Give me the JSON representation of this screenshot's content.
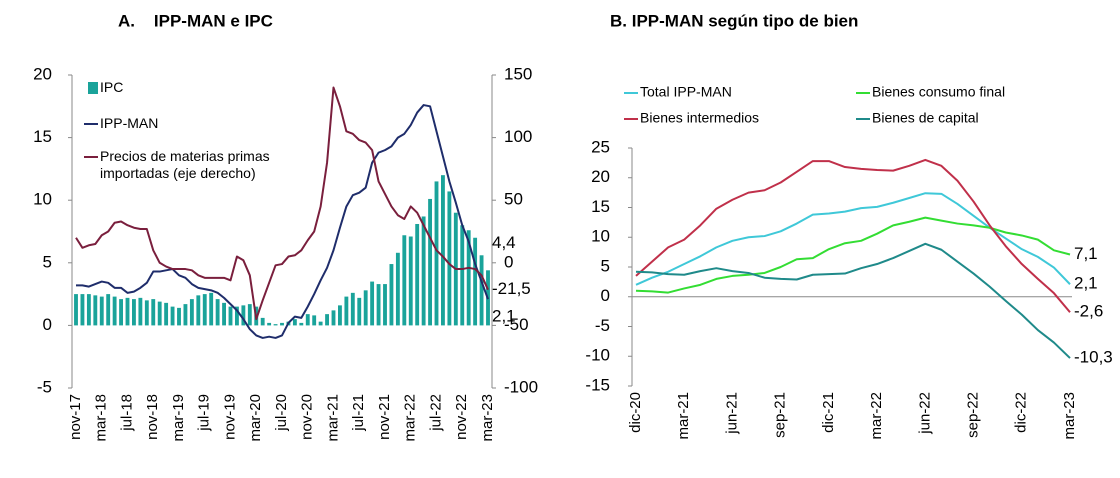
{
  "chart_data": [
    {
      "type": "combo",
      "title": "A.    IPP-MAN e IPC",
      "categories": [
        "nov-17",
        null,
        null,
        null,
        "mar-18",
        null,
        null,
        null,
        "jul-18",
        null,
        null,
        null,
        "nov-18",
        null,
        null,
        null,
        "mar-19",
        null,
        null,
        null,
        "jul-19",
        null,
        null,
        null,
        "nov-19",
        null,
        null,
        null,
        "mar-20",
        null,
        null,
        null,
        "jul-20",
        null,
        null,
        null,
        "nov-20",
        null,
        null,
        null,
        "mar-21",
        null,
        null,
        null,
        "jul-21",
        null,
        null,
        null,
        "nov-21",
        null,
        null,
        null,
        "mar-22",
        null,
        null,
        null,
        "jul-22",
        null,
        null,
        null,
        "nov-22",
        null,
        null,
        null,
        "mar-23"
      ],
      "ylim": [
        -5,
        20
      ],
      "yticks": [
        -5,
        0,
        5,
        10,
        15,
        20
      ],
      "y2lim": [
        -100,
        150
      ],
      "y2ticks": [
        -100,
        -50,
        0,
        50,
        100,
        150
      ],
      "series": [
        {
          "name": "IPC",
          "type": "bar",
          "color": "#1aa39a",
          "values": [
            2.5,
            2.5,
            2.5,
            2.4,
            2.3,
            2.5,
            2.3,
            2.1,
            2.2,
            2.1,
            2.2,
            2.0,
            2.1,
            1.9,
            1.8,
            1.5,
            1.4,
            1.7,
            2.1,
            2.4,
            2.5,
            2.6,
            2.1,
            1.8,
            1.5,
            1.5,
            1.6,
            1.7,
            1.5,
            0.6,
            0.2,
            0.1,
            0.2,
            0.3,
            0.5,
            0.2,
            0.9,
            0.8,
            0.3,
            0.9,
            1.2,
            1.6,
            2.3,
            2.6,
            2.2,
            2.8,
            3.5,
            3.3,
            3.3,
            4.9,
            5.8,
            7.2,
            7.1,
            8.1,
            8.7,
            10.1,
            11.5,
            12.0,
            10.7,
            9.0,
            8.0,
            7.6,
            7.0,
            5.6,
            4.4
          ],
          "value_labels": [
            null,
            null,
            null,
            null,
            null,
            null,
            null,
            null,
            null,
            null,
            null,
            null,
            null,
            null,
            null,
            null,
            null,
            null,
            null,
            null,
            null,
            null,
            null,
            null,
            null,
            null,
            null,
            null,
            null,
            null,
            null,
            null,
            null,
            null,
            null,
            null,
            null,
            null,
            null,
            null,
            null,
            null,
            null,
            null,
            null,
            null,
            null,
            null,
            null,
            null,
            null,
            null,
            null,
            null,
            null,
            null,
            null,
            null,
            null,
            null,
            null,
            null,
            null,
            null,
            "4,4"
          ]
        },
        {
          "name": "IPP-MAN",
          "type": "line",
          "color": "#1f2d6b",
          "values": [
            3.2,
            3.2,
            3.1,
            3.3,
            3.5,
            3.4,
            3.0,
            3.0,
            2.6,
            2.7,
            3.0,
            3.4,
            4.3,
            4.3,
            4.4,
            4.5,
            4.0,
            3.8,
            3.3,
            3.0,
            2.9,
            2.8,
            2.6,
            2.2,
            1.7,
            1.2,
            0.5,
            -0.3,
            -0.8,
            -1.0,
            -0.9,
            -1.0,
            -0.8,
            0.2,
            0.7,
            0.6,
            1.5,
            2.5,
            3.6,
            4.6,
            6.0,
            7.8,
            9.5,
            10.4,
            10.6,
            11.0,
            13.0,
            13.8,
            14.0,
            14.3,
            15.0,
            15.3,
            16.0,
            17.0,
            17.6,
            17.5,
            15.5,
            13.5,
            11.5,
            9.8,
            8.0,
            6.7,
            4.9,
            3.5,
            2.1
          ],
          "value_labels": [
            null,
            null,
            null,
            null,
            null,
            null,
            null,
            null,
            null,
            null,
            null,
            null,
            null,
            null,
            null,
            null,
            null,
            null,
            null,
            null,
            null,
            null,
            null,
            null,
            null,
            null,
            null,
            null,
            null,
            null,
            null,
            null,
            null,
            null,
            null,
            null,
            null,
            null,
            null,
            null,
            null,
            null,
            null,
            null,
            null,
            null,
            null,
            null,
            null,
            null,
            null,
            null,
            null,
            null,
            null,
            null,
            null,
            null,
            null,
            null,
            null,
            null,
            null,
            null,
            "2,1"
          ]
        },
        {
          "name": "Precios de materias primas importadas (eje derecho)",
          "type": "line",
          "axis": "y2",
          "color": "#7a1f3d",
          "values": [
            20,
            12,
            14,
            15,
            22,
            25,
            32,
            33,
            30,
            28,
            27,
            27,
            10,
            0,
            -3,
            -5,
            -5,
            -5,
            -6,
            -10,
            -12,
            -12,
            -12,
            -12,
            -14,
            5,
            2,
            -10,
            -45,
            -30,
            -16,
            -2,
            -1,
            5,
            6,
            10,
            18,
            25,
            45,
            80,
            140,
            125,
            105,
            103,
            98,
            96,
            90,
            65,
            55,
            45,
            38,
            35,
            45,
            40,
            30,
            20,
            10,
            5,
            -1,
            -5,
            -5,
            -4,
            -5,
            -10,
            -21.5
          ],
          "value_labels": [
            null,
            null,
            null,
            null,
            null,
            null,
            null,
            null,
            null,
            null,
            null,
            null,
            null,
            null,
            null,
            null,
            null,
            null,
            null,
            null,
            null,
            null,
            null,
            null,
            null,
            null,
            null,
            null,
            null,
            null,
            null,
            null,
            null,
            null,
            null,
            null,
            null,
            null,
            null,
            null,
            null,
            null,
            null,
            null,
            null,
            null,
            null,
            null,
            null,
            null,
            null,
            null,
            null,
            null,
            null,
            null,
            null,
            null,
            null,
            null,
            null,
            null,
            null,
            null,
            "-21,5"
          ]
        }
      ]
    },
    {
      "type": "line",
      "title": "B. IPP-MAN según tipo de bien",
      "categories": [
        "dic-20",
        null,
        null,
        "mar-21",
        null,
        null,
        "jun-21",
        null,
        null,
        "sep-21",
        null,
        null,
        "dic-21",
        null,
        null,
        "mar-22",
        null,
        null,
        "jun-22",
        null,
        null,
        "sep-22",
        null,
        null,
        "dic-22",
        null,
        null,
        "mar-23"
      ],
      "ylim": [
        -15,
        25
      ],
      "yticks": [
        -15,
        -10,
        -5,
        0,
        5,
        10,
        15,
        20,
        25
      ],
      "series": [
        {
          "name": "Total IPP-MAN",
          "color": "#3fc8d8",
          "values": [
            2.0,
            3.2,
            4.2,
            5.5,
            6.8,
            8.3,
            9.4,
            10.0,
            10.2,
            11.0,
            12.3,
            13.8,
            14.0,
            14.3,
            14.9,
            15.1,
            15.8,
            16.6,
            17.4,
            17.3,
            15.6,
            13.6,
            11.6,
            9.8,
            8.0,
            6.7,
            4.9,
            2.1
          ],
          "value_labels": [
            null,
            null,
            null,
            null,
            null,
            null,
            null,
            null,
            null,
            null,
            null,
            null,
            null,
            null,
            null,
            null,
            null,
            null,
            null,
            null,
            null,
            null,
            null,
            null,
            null,
            null,
            null,
            "2,1"
          ]
        },
        {
          "name": "Bienes consumo final",
          "color": "#33dd33",
          "values": [
            1.0,
            0.9,
            0.7,
            1.4,
            2.0,
            3.0,
            3.5,
            3.7,
            4.0,
            5.0,
            6.3,
            6.5,
            8.0,
            9.0,
            9.4,
            10.6,
            12.0,
            12.6,
            13.3,
            12.8,
            12.3,
            12.0,
            11.6,
            10.8,
            10.3,
            9.6,
            7.8,
            7.1
          ],
          "value_labels": [
            null,
            null,
            null,
            null,
            null,
            null,
            null,
            null,
            null,
            null,
            null,
            null,
            null,
            null,
            null,
            null,
            null,
            null,
            null,
            null,
            null,
            null,
            null,
            null,
            null,
            null,
            null,
            "7,1"
          ]
        },
        {
          "name": "Bienes intermedios",
          "color": "#c0304a",
          "values": [
            3.5,
            5.9,
            8.3,
            9.6,
            12.0,
            14.8,
            16.3,
            17.5,
            17.9,
            19.2,
            21.0,
            22.8,
            22.8,
            21.8,
            21.5,
            21.3,
            21.2,
            22.0,
            23.0,
            22.0,
            19.5,
            16.0,
            12.0,
            8.5,
            5.5,
            3.0,
            0.6,
            -2.6
          ],
          "value_labels": [
            null,
            null,
            null,
            null,
            null,
            null,
            null,
            null,
            null,
            null,
            null,
            null,
            null,
            null,
            null,
            null,
            null,
            null,
            null,
            null,
            null,
            null,
            null,
            null,
            null,
            null,
            null,
            "-2,6"
          ]
        },
        {
          "name": "Bienes de capital",
          "color": "#1f8a8a",
          "values": [
            4.2,
            4.1,
            3.8,
            3.7,
            4.3,
            4.8,
            4.3,
            4.0,
            3.2,
            3.0,
            2.9,
            3.7,
            3.8,
            3.9,
            4.8,
            5.5,
            6.5,
            7.7,
            8.9,
            7.9,
            5.9,
            3.9,
            1.7,
            -0.7,
            -3.0,
            -5.6,
            -7.7,
            -10.3
          ],
          "value_labels": [
            null,
            null,
            null,
            null,
            null,
            null,
            null,
            null,
            null,
            null,
            null,
            null,
            null,
            null,
            null,
            null,
            null,
            null,
            null,
            null,
            null,
            null,
            null,
            null,
            null,
            null,
            null,
            "-10,3"
          ]
        }
      ]
    }
  ]
}
